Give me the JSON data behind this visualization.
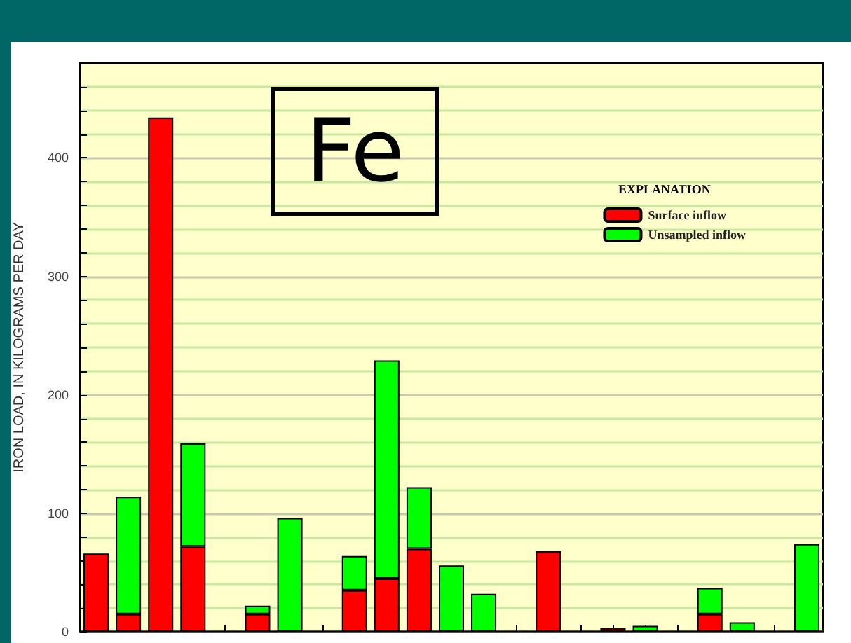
{
  "chart_data": {
    "type": "bar",
    "stacked": true,
    "ylabel": "IRON LOAD, IN KILOGRAMS PER DAY",
    "annotations": [
      "Fe"
    ],
    "legend_title": "EXPLANATION",
    "legend": "top right",
    "grid": "y",
    "categories": [
      null,
      null,
      null,
      null,
      null,
      null,
      null,
      null,
      null,
      null,
      null,
      null,
      null,
      null,
      null,
      null,
      null,
      null,
      null,
      null,
      null,
      null,
      null
    ],
    "series": [
      {
        "name": "Surface inflow",
        "color": "#ff0000",
        "values": [
          66,
          15,
          434,
          72,
          null,
          15,
          null,
          null,
          35,
          45,
          70,
          null,
          null,
          null,
          68,
          null,
          3,
          null,
          null,
          15,
          null,
          null,
          null
        ]
      },
      {
        "name": "Unsampled inflow",
        "color": "#00ff00",
        "values": [
          null,
          99,
          null,
          87,
          null,
          7,
          96,
          null,
          29,
          184,
          52,
          56,
          32,
          null,
          null,
          null,
          null,
          5,
          null,
          22,
          8,
          null,
          74
        ]
      }
    ],
    "ylim": [
      0,
      480
    ],
    "yticks": [
      0,
      {
        "value": 20,
        "label": null
      },
      {
        "value": 40,
        "label": null
      },
      {
        "value": 60,
        "label": null
      },
      {
        "value": 80,
        "label": null
      },
      100,
      {
        "value": 120,
        "label": null
      },
      {
        "value": 140,
        "label": null
      },
      {
        "value": 160,
        "label": null
      },
      {
        "value": 180,
        "label": null
      },
      200,
      {
        "value": 220,
        "label": null
      },
      {
        "value": 240,
        "label": null
      },
      {
        "value": 260,
        "label": null
      },
      {
        "value": 280,
        "label": null
      },
      300,
      {
        "value": 320,
        "label": null
      },
      {
        "value": 340,
        "label": null
      },
      {
        "value": 360,
        "label": null
      },
      {
        "value": 380,
        "label": null
      },
      400,
      {
        "value": 420,
        "label": null
      },
      {
        "value": 440,
        "label": null
      },
      {
        "value": 460,
        "label": null
      }
    ]
  }
}
